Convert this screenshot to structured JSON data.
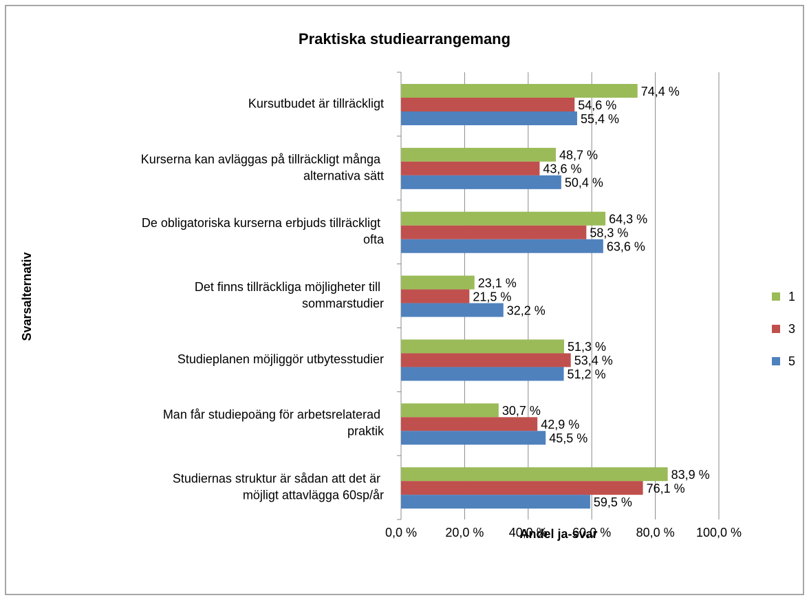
{
  "chart_data": {
    "type": "bar",
    "orientation": "horizontal",
    "title": "Praktiska studiearrangemang",
    "xlabel": "Andel ja-svar",
    "ylabel": "Svarsalternativ",
    "categories": [
      "Kursutbudet är tillräckligt",
      "Kurserna kan avläggas på tillräckligt många alternativa sätt",
      "De obligatoriska kurserna erbjuds tillräckligt ofta",
      "Det finns tillräckliga möjligheter till sommarstudier",
      "Studieplanen möjliggör utbytesstudier",
      "Man får studiepoäng för arbetsrelaterad praktik",
      "Studiernas struktur är sådan att det är möjligt attavlägga 60sp/år"
    ],
    "series": [
      {
        "name": "1",
        "color": "#9bbb59",
        "values": [
          74.4,
          48.7,
          64.3,
          23.1,
          51.3,
          30.7,
          83.9
        ],
        "value_labels": [
          "74,4 %",
          "48,7 %",
          "64,3 %",
          "23,1 %",
          "51,3 %",
          "30,7 %",
          "83,9 %"
        ]
      },
      {
        "name": "3",
        "color": "#c0504d",
        "values": [
          54.6,
          43.6,
          58.3,
          21.5,
          53.4,
          42.9,
          76.1
        ],
        "value_labels": [
          "54,6 %",
          "43,6 %",
          "58,3 %",
          "21,5 %",
          "53,4 %",
          "42,9 %",
          "76,1 %"
        ]
      },
      {
        "name": "5",
        "color": "#4f81bd",
        "values": [
          55.4,
          50.4,
          63.6,
          32.2,
          51.2,
          45.5,
          59.5
        ],
        "value_labels": [
          "55,4 %",
          "50,4 %",
          "63,6 %",
          "32,2 %",
          "51,2 %",
          "45,5 %",
          "59,5 %"
        ]
      }
    ],
    "xlim": [
      0,
      100
    ],
    "xticks": [
      {
        "value": 0,
        "label": "0,0 %"
      },
      {
        "value": 20,
        "label": "20,0 %"
      },
      {
        "value": 40,
        "label": "40,0 %"
      },
      {
        "value": 60,
        "label": "60,0 %"
      },
      {
        "value": 80,
        "label": "80,0 %"
      },
      {
        "value": 100,
        "label": "100,0 %"
      }
    ],
    "grid": true,
    "legend": "right"
  }
}
